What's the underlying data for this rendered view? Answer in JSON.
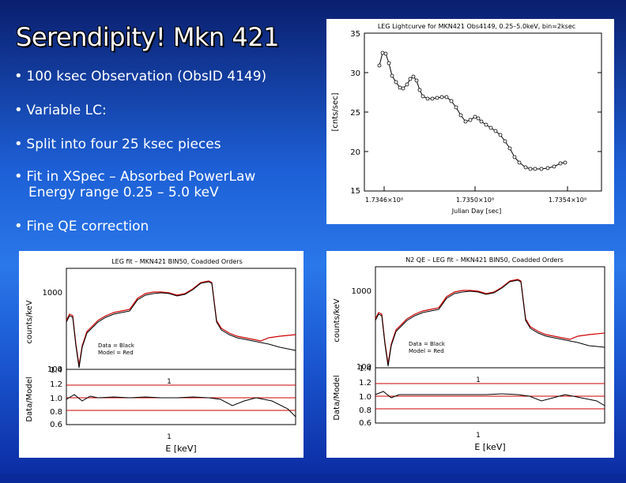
{
  "slide": {
    "title": "Serendipity! Mkn 421",
    "bullets": [
      "100 ksec Observation (ObsID 4149)",
      "Variable LC:",
      "Split into four 25 ksec pieces",
      "Fit in XSpec – Absorbed PowerLaw",
      "Energy range 0.25 – 5.0 keV",
      "Fine QE correction"
    ]
  },
  "lightcurve": {
    "title": "LEG Lightcurve for MKN421 Obs4149, 0.25–5.0keV, bin=2ksec",
    "xlabel": "Julian Day [sec]",
    "ylabel": "[cnts/sec]",
    "xticks": [
      "1.7346×10⁸",
      "1.7350×10⁸",
      "1.7354×10⁸"
    ],
    "yticks": [
      "15",
      "20",
      "25",
      "30",
      "35"
    ]
  },
  "spec1": {
    "title": "LEG fit – MKN421 BIN50, Coadded Orders",
    "legend_data": "Data = Black",
    "legend_model": "Model = Red",
    "ylabel_top": "counts/keV",
    "ylabel_bottom": "Data/Model",
    "xlabel": "E [keV]",
    "top_ticks": [
      "1000",
      "100"
    ],
    "bottom_ticks": [
      "1.4",
      "1.2",
      "1.0",
      "0.8",
      "0.6"
    ],
    "mid_label": "1",
    "x_label_1": "1"
  },
  "spec2": {
    "title": "N2 QE – LEG fit – MKN421 BIN50, Coadded Orders",
    "legend_data": "Data = Black",
    "legend_model": "Model = Red",
    "ylabel_top": "counts/keV",
    "ylabel_bottom": "Data/Model",
    "xlabel": "E [keV]",
    "top_ticks": [
      "1000",
      "100"
    ],
    "bottom_ticks": [
      "1.4",
      "1.2",
      "1.0",
      "0.8",
      "0.6"
    ],
    "mid_label": "1",
    "x_label_1": "1"
  }
}
